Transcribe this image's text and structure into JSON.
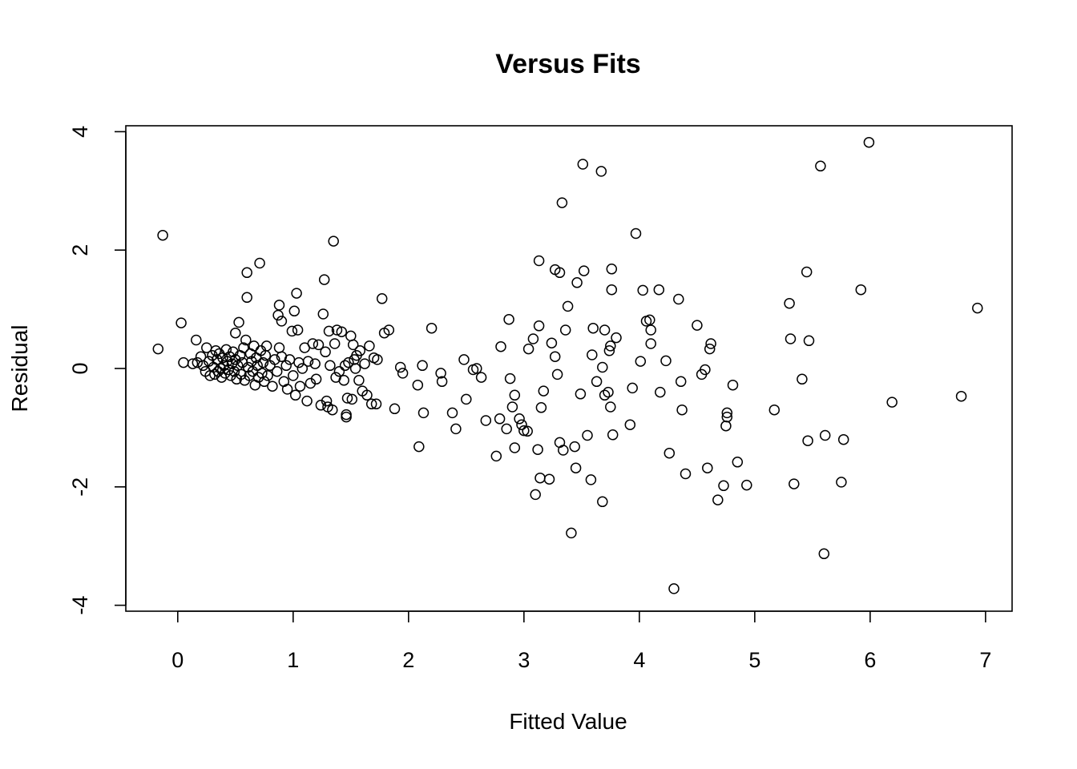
{
  "chart_data": {
    "type": "scatter",
    "title": "Versus Fits",
    "xlabel": "Fitted Value",
    "ylabel": "Residual",
    "xlim": [
      -0.45,
      7.23
    ],
    "ylim": [
      -4.1,
      4.1
    ],
    "xticks": [
      0,
      1,
      2,
      3,
      4,
      5,
      6,
      7
    ],
    "yticks": [
      -4,
      -2,
      0,
      2,
      4
    ],
    "grid": false,
    "legend": "none",
    "points": [
      [
        -0.17,
        0.33
      ],
      [
        -0.13,
        2.25
      ],
      [
        0.03,
        0.77
      ],
      [
        0.05,
        0.1
      ],
      [
        0.13,
        0.08
      ],
      [
        0.16,
        0.48
      ],
      [
        0.17,
        0.1
      ],
      [
        0.2,
        0.2
      ],
      [
        0.22,
        0.05
      ],
      [
        0.24,
        -0.05
      ],
      [
        0.25,
        0.35
      ],
      [
        0.27,
        0.12
      ],
      [
        0.28,
        -0.12
      ],
      [
        0.3,
        0.22
      ],
      [
        0.31,
        0.02
      ],
      [
        0.32,
        -0.1
      ],
      [
        0.33,
        0.3
      ],
      [
        0.34,
        0.15
      ],
      [
        0.35,
        -0.05
      ],
      [
        0.36,
        0.25
      ],
      [
        0.37,
        0.0
      ],
      [
        0.38,
        -0.15
      ],
      [
        0.39,
        0.18
      ],
      [
        0.4,
        0.05
      ],
      [
        0.41,
        -0.08
      ],
      [
        0.42,
        0.32
      ],
      [
        0.43,
        0.12
      ],
      [
        0.44,
        -0.02
      ],
      [
        0.45,
        0.2
      ],
      [
        0.46,
        -0.12
      ],
      [
        0.47,
        0.08
      ],
      [
        0.48,
        0.28
      ],
      [
        0.49,
        -0.05
      ],
      [
        0.5,
        0.15
      ],
      [
        0.5,
        0.6
      ],
      [
        0.51,
        -0.18
      ],
      [
        0.52,
        0.05
      ],
      [
        0.53,
        0.78
      ],
      [
        0.54,
        0.22
      ],
      [
        0.55,
        -0.1
      ],
      [
        0.56,
        0.1
      ],
      [
        0.57,
        0.35
      ],
      [
        0.58,
        -0.2
      ],
      [
        0.59,
        0.48
      ],
      [
        0.6,
        1.62
      ],
      [
        0.6,
        1.2
      ],
      [
        0.61,
        0.02
      ],
      [
        0.62,
        -0.12
      ],
      [
        0.63,
        0.25
      ],
      [
        0.64,
        0.12
      ],
      [
        0.65,
        -0.05
      ],
      [
        0.66,
        0.38
      ],
      [
        0.67,
        -0.28
      ],
      [
        0.68,
        0.18
      ],
      [
        0.69,
        0.05
      ],
      [
        0.7,
        -0.15
      ],
      [
        0.71,
        1.78
      ],
      [
        0.72,
        0.3
      ],
      [
        0.73,
        -0.08
      ],
      [
        0.74,
        0.1
      ],
      [
        0.75,
        -0.22
      ],
      [
        0.76,
        0.22
      ],
      [
        0.77,
        0.38
      ],
      [
        0.78,
        -0.12
      ],
      [
        0.8,
        0.05
      ],
      [
        0.82,
        -0.3
      ],
      [
        0.84,
        0.15
      ],
      [
        0.86,
        -0.05
      ],
      [
        0.87,
        0.9
      ],
      [
        0.88,
        1.07
      ],
      [
        0.88,
        0.35
      ],
      [
        0.9,
        0.8
      ],
      [
        0.9,
        0.2
      ],
      [
        0.92,
        -0.22
      ],
      [
        0.94,
        0.05
      ],
      [
        0.95,
        -0.35
      ],
      [
        0.97,
        0.15
      ],
      [
        0.99,
        0.63
      ],
      [
        1.0,
        -0.12
      ],
      [
        1.01,
        0.97
      ],
      [
        1.02,
        -0.45
      ],
      [
        1.03,
        1.27
      ],
      [
        1.04,
        0.65
      ],
      [
        1.05,
        0.1
      ],
      [
        1.06,
        -0.3
      ],
      [
        1.08,
        0.0
      ],
      [
        1.1,
        0.35
      ],
      [
        1.12,
        -0.55
      ],
      [
        1.13,
        0.12
      ],
      [
        1.15,
        -0.25
      ],
      [
        1.17,
        0.42
      ],
      [
        1.19,
        0.08
      ],
      [
        1.2,
        -0.18
      ],
      [
        1.22,
        0.4
      ],
      [
        1.24,
        -0.62
      ],
      [
        1.26,
        0.92
      ],
      [
        1.27,
        1.5
      ],
      [
        1.28,
        0.28
      ],
      [
        1.29,
        -0.55
      ],
      [
        1.3,
        -0.65
      ],
      [
        1.31,
        0.63
      ],
      [
        1.32,
        0.05
      ],
      [
        1.34,
        -0.7
      ],
      [
        1.35,
        2.15
      ],
      [
        1.36,
        0.42
      ],
      [
        1.37,
        -0.15
      ],
      [
        1.38,
        0.65
      ],
      [
        1.4,
        -0.05
      ],
      [
        1.42,
        0.62
      ],
      [
        1.44,
        -0.2
      ],
      [
        1.45,
        0.05
      ],
      [
        1.46,
        -0.78
      ],
      [
        1.46,
        -0.82
      ],
      [
        1.47,
        -0.5
      ],
      [
        1.48,
        0.1
      ],
      [
        1.5,
        0.55
      ],
      [
        1.51,
        -0.52
      ],
      [
        1.52,
        0.4
      ],
      [
        1.53,
        0.15
      ],
      [
        1.54,
        0.0
      ],
      [
        1.55,
        0.22
      ],
      [
        1.57,
        -0.2
      ],
      [
        1.58,
        0.3
      ],
      [
        1.6,
        -0.38
      ],
      [
        1.62,
        0.08
      ],
      [
        1.64,
        -0.45
      ],
      [
        1.66,
        0.38
      ],
      [
        1.68,
        -0.6
      ],
      [
        1.7,
        0.18
      ],
      [
        1.72,
        -0.6
      ],
      [
        1.73,
        0.15
      ],
      [
        1.77,
        1.18
      ],
      [
        1.79,
        0.6
      ],
      [
        1.83,
        0.65
      ],
      [
        1.88,
        -0.68
      ],
      [
        1.93,
        0.02
      ],
      [
        1.95,
        -0.08
      ],
      [
        2.08,
        -0.28
      ],
      [
        2.09,
        -1.32
      ],
      [
        2.12,
        0.05
      ],
      [
        2.13,
        -0.75
      ],
      [
        2.2,
        0.68
      ],
      [
        2.28,
        -0.08
      ],
      [
        2.29,
        -0.22
      ],
      [
        2.38,
        -0.75
      ],
      [
        2.41,
        -1.02
      ],
      [
        2.48,
        0.15
      ],
      [
        2.5,
        -0.52
      ],
      [
        2.56,
        -0.02
      ],
      [
        2.59,
        -0.0
      ],
      [
        2.63,
        -0.15
      ],
      [
        2.67,
        -0.88
      ],
      [
        2.76,
        -1.48
      ],
      [
        2.79,
        -0.85
      ],
      [
        2.8,
        0.37
      ],
      [
        2.85,
        -1.02
      ],
      [
        2.87,
        0.83
      ],
      [
        2.88,
        -0.17
      ],
      [
        2.9,
        -0.65
      ],
      [
        2.92,
        -0.45
      ],
      [
        2.92,
        -1.34
      ],
      [
        2.96,
        -0.85
      ],
      [
        2.98,
        -0.95
      ],
      [
        3.0,
        -1.05
      ],
      [
        3.03,
        -1.06
      ],
      [
        3.04,
        0.33
      ],
      [
        3.08,
        0.5
      ],
      [
        3.1,
        -2.13
      ],
      [
        3.12,
        -1.37
      ],
      [
        3.13,
        0.72
      ],
      [
        3.13,
        1.82
      ],
      [
        3.14,
        -1.85
      ],
      [
        3.15,
        -0.66
      ],
      [
        3.17,
        -0.38
      ],
      [
        3.22,
        -1.87
      ],
      [
        3.24,
        0.43
      ],
      [
        3.27,
        0.2
      ],
      [
        3.27,
        1.67
      ],
      [
        3.29,
        -0.1
      ],
      [
        3.31,
        1.62
      ],
      [
        3.31,
        -1.25
      ],
      [
        3.33,
        2.8
      ],
      [
        3.34,
        -1.38
      ],
      [
        3.36,
        0.65
      ],
      [
        3.38,
        1.05
      ],
      [
        3.41,
        -2.78
      ],
      [
        3.44,
        -1.32
      ],
      [
        3.45,
        -1.68
      ],
      [
        3.46,
        1.45
      ],
      [
        3.49,
        -0.43
      ],
      [
        3.51,
        3.45
      ],
      [
        3.52,
        1.65
      ],
      [
        3.55,
        -1.13
      ],
      [
        3.58,
        -1.88
      ],
      [
        3.59,
        0.23
      ],
      [
        3.6,
        0.68
      ],
      [
        3.63,
        -0.22
      ],
      [
        3.67,
        3.33
      ],
      [
        3.68,
        -2.25
      ],
      [
        3.68,
        0.02
      ],
      [
        3.7,
        -0.45
      ],
      [
        3.7,
        0.65
      ],
      [
        3.73,
        -0.4
      ],
      [
        3.74,
        0.3
      ],
      [
        3.75,
        -0.65
      ],
      [
        3.75,
        0.38
      ],
      [
        3.76,
        1.68
      ],
      [
        3.76,
        1.33
      ],
      [
        3.77,
        -1.12
      ],
      [
        3.8,
        0.52
      ],
      [
        3.92,
        -0.95
      ],
      [
        3.94,
        -0.33
      ],
      [
        3.97,
        2.28
      ],
      [
        4.01,
        0.12
      ],
      [
        4.03,
        1.32
      ],
      [
        4.06,
        0.8
      ],
      [
        4.09,
        0.82
      ],
      [
        4.1,
        0.42
      ],
      [
        4.1,
        0.65
      ],
      [
        4.17,
        1.33
      ],
      [
        4.18,
        -0.4
      ],
      [
        4.23,
        0.13
      ],
      [
        4.26,
        -1.43
      ],
      [
        4.3,
        -3.72
      ],
      [
        4.34,
        1.17
      ],
      [
        4.36,
        -0.22
      ],
      [
        4.37,
        -0.7
      ],
      [
        4.4,
        -1.78
      ],
      [
        4.5,
        0.73
      ],
      [
        4.54,
        -0.1
      ],
      [
        4.57,
        -0.02
      ],
      [
        4.59,
        -1.68
      ],
      [
        4.61,
        0.33
      ],
      [
        4.62,
        0.42
      ],
      [
        4.68,
        -2.22
      ],
      [
        4.73,
        -1.98
      ],
      [
        4.75,
        -0.97
      ],
      [
        4.76,
        -0.82
      ],
      [
        4.76,
        -0.75
      ],
      [
        4.81,
        -0.28
      ],
      [
        4.85,
        -1.58
      ],
      [
        4.93,
        -1.97
      ],
      [
        5.17,
        -0.7
      ],
      [
        5.3,
        1.1
      ],
      [
        5.31,
        0.5
      ],
      [
        5.34,
        -1.95
      ],
      [
        5.41,
        -0.18
      ],
      [
        5.45,
        1.63
      ],
      [
        5.46,
        -1.22
      ],
      [
        5.47,
        0.47
      ],
      [
        5.57,
        3.42
      ],
      [
        5.6,
        -3.13
      ],
      [
        5.61,
        -1.13
      ],
      [
        5.75,
        -1.92
      ],
      [
        5.77,
        -1.2
      ],
      [
        5.92,
        1.33
      ],
      [
        5.99,
        3.82
      ],
      [
        6.19,
        -0.57
      ],
      [
        6.79,
        -0.47
      ],
      [
        6.93,
        1.02
      ]
    ]
  }
}
